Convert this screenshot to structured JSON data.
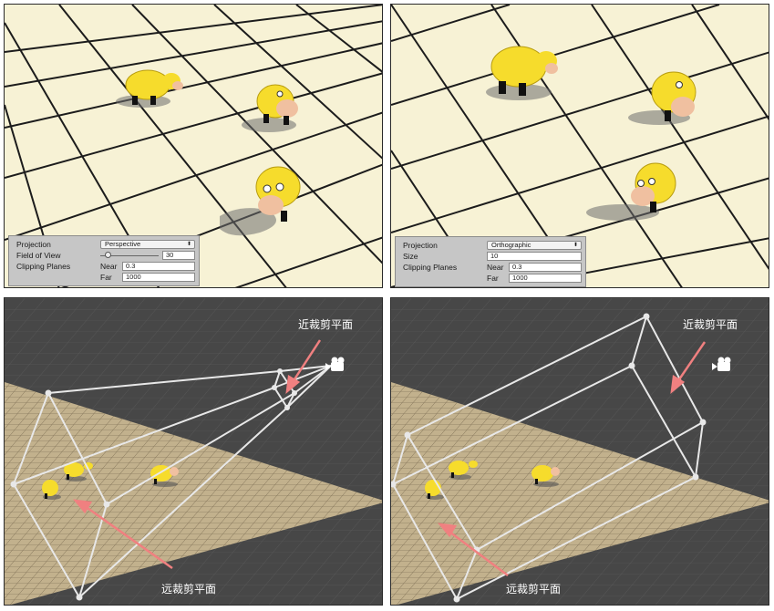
{
  "perspective_inspector": {
    "projection_label": "Projection",
    "projection_value": "Perspective",
    "fov_label": "Field of View",
    "fov_value": "30",
    "fov_fraction": 0.12,
    "clipping_label": "Clipping Planes",
    "near_label": "Near",
    "near_value": "0.3",
    "far_label": "Far",
    "far_value": "1000"
  },
  "orthographic_inspector": {
    "projection_label": "Projection",
    "projection_value": "Orthographic",
    "size_label": "Size",
    "size_value": "10",
    "clipping_label": "Clipping Planes",
    "near_label": "Near",
    "near_value": "0.3",
    "far_label": "Far",
    "far_value": "1000"
  },
  "annotations": {
    "near_plane": "近裁剪平面",
    "far_plane": "远裁剪平面"
  },
  "colors": {
    "ground": "#f7f2d5",
    "grid_line": "#1c1c1c",
    "scene_bg": "#474747",
    "floor": "#c2b18d",
    "cow": "#f6dc2c",
    "frustum": "#e8e8e8",
    "arrow": "#f08080"
  },
  "icons": {
    "dropdown": "updown-arrows-icon",
    "camera": "camera-icon",
    "cow": "cow-model-icon"
  }
}
